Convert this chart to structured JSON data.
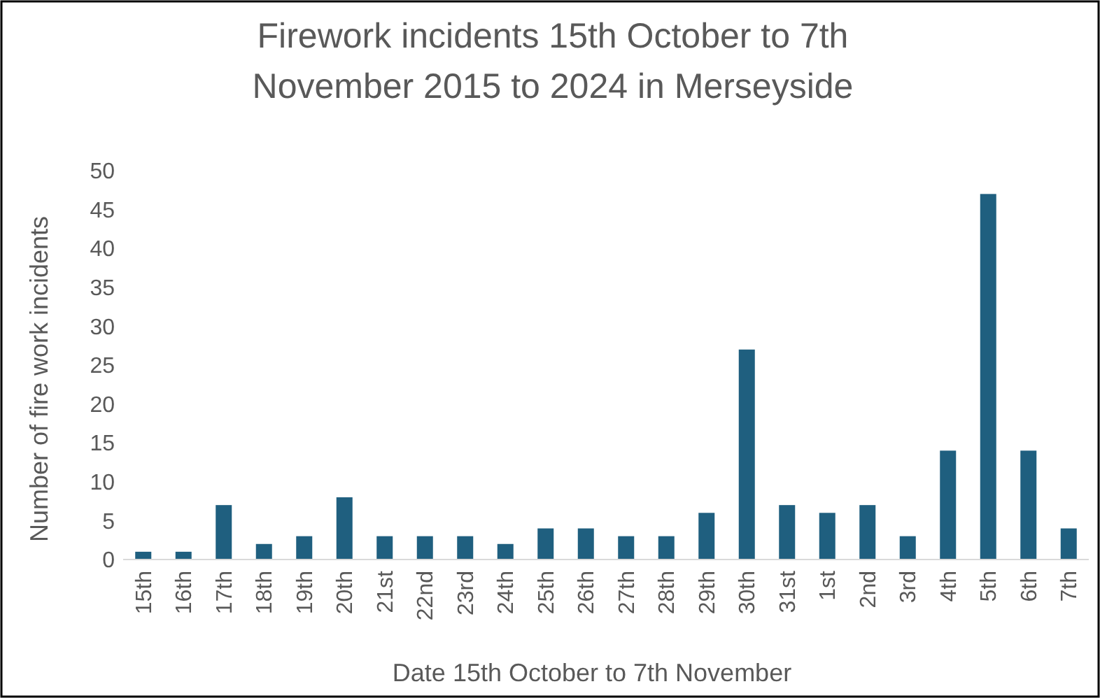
{
  "chart_data": {
    "type": "bar",
    "title": "Firework incidents 15th October to 7th November 2015 to 2024 in Merseyside",
    "xlabel": "Date 15th October to 7th November",
    "ylabel": "Number of fire work incidents",
    "categories": [
      "15th",
      "16th",
      "17th",
      "18th",
      "19th",
      "20th",
      "21st",
      "22nd",
      "23rd",
      "24th",
      "25th",
      "26th",
      "27th",
      "28th",
      "29th",
      "30th",
      "31st",
      "1st",
      "2nd",
      "3rd",
      "4th",
      "5th",
      "6th",
      "7th"
    ],
    "values": [
      1,
      1,
      7,
      2,
      3,
      8,
      3,
      3,
      3,
      2,
      4,
      4,
      3,
      3,
      6,
      27,
      7,
      6,
      7,
      3,
      14,
      47,
      14,
      4
    ],
    "color": "#1f5f7f",
    "ylim": [
      0,
      50
    ],
    "yticks": [
      0,
      5,
      10,
      15,
      20,
      25,
      30,
      35,
      40,
      45,
      50
    ],
    "grid": false
  }
}
